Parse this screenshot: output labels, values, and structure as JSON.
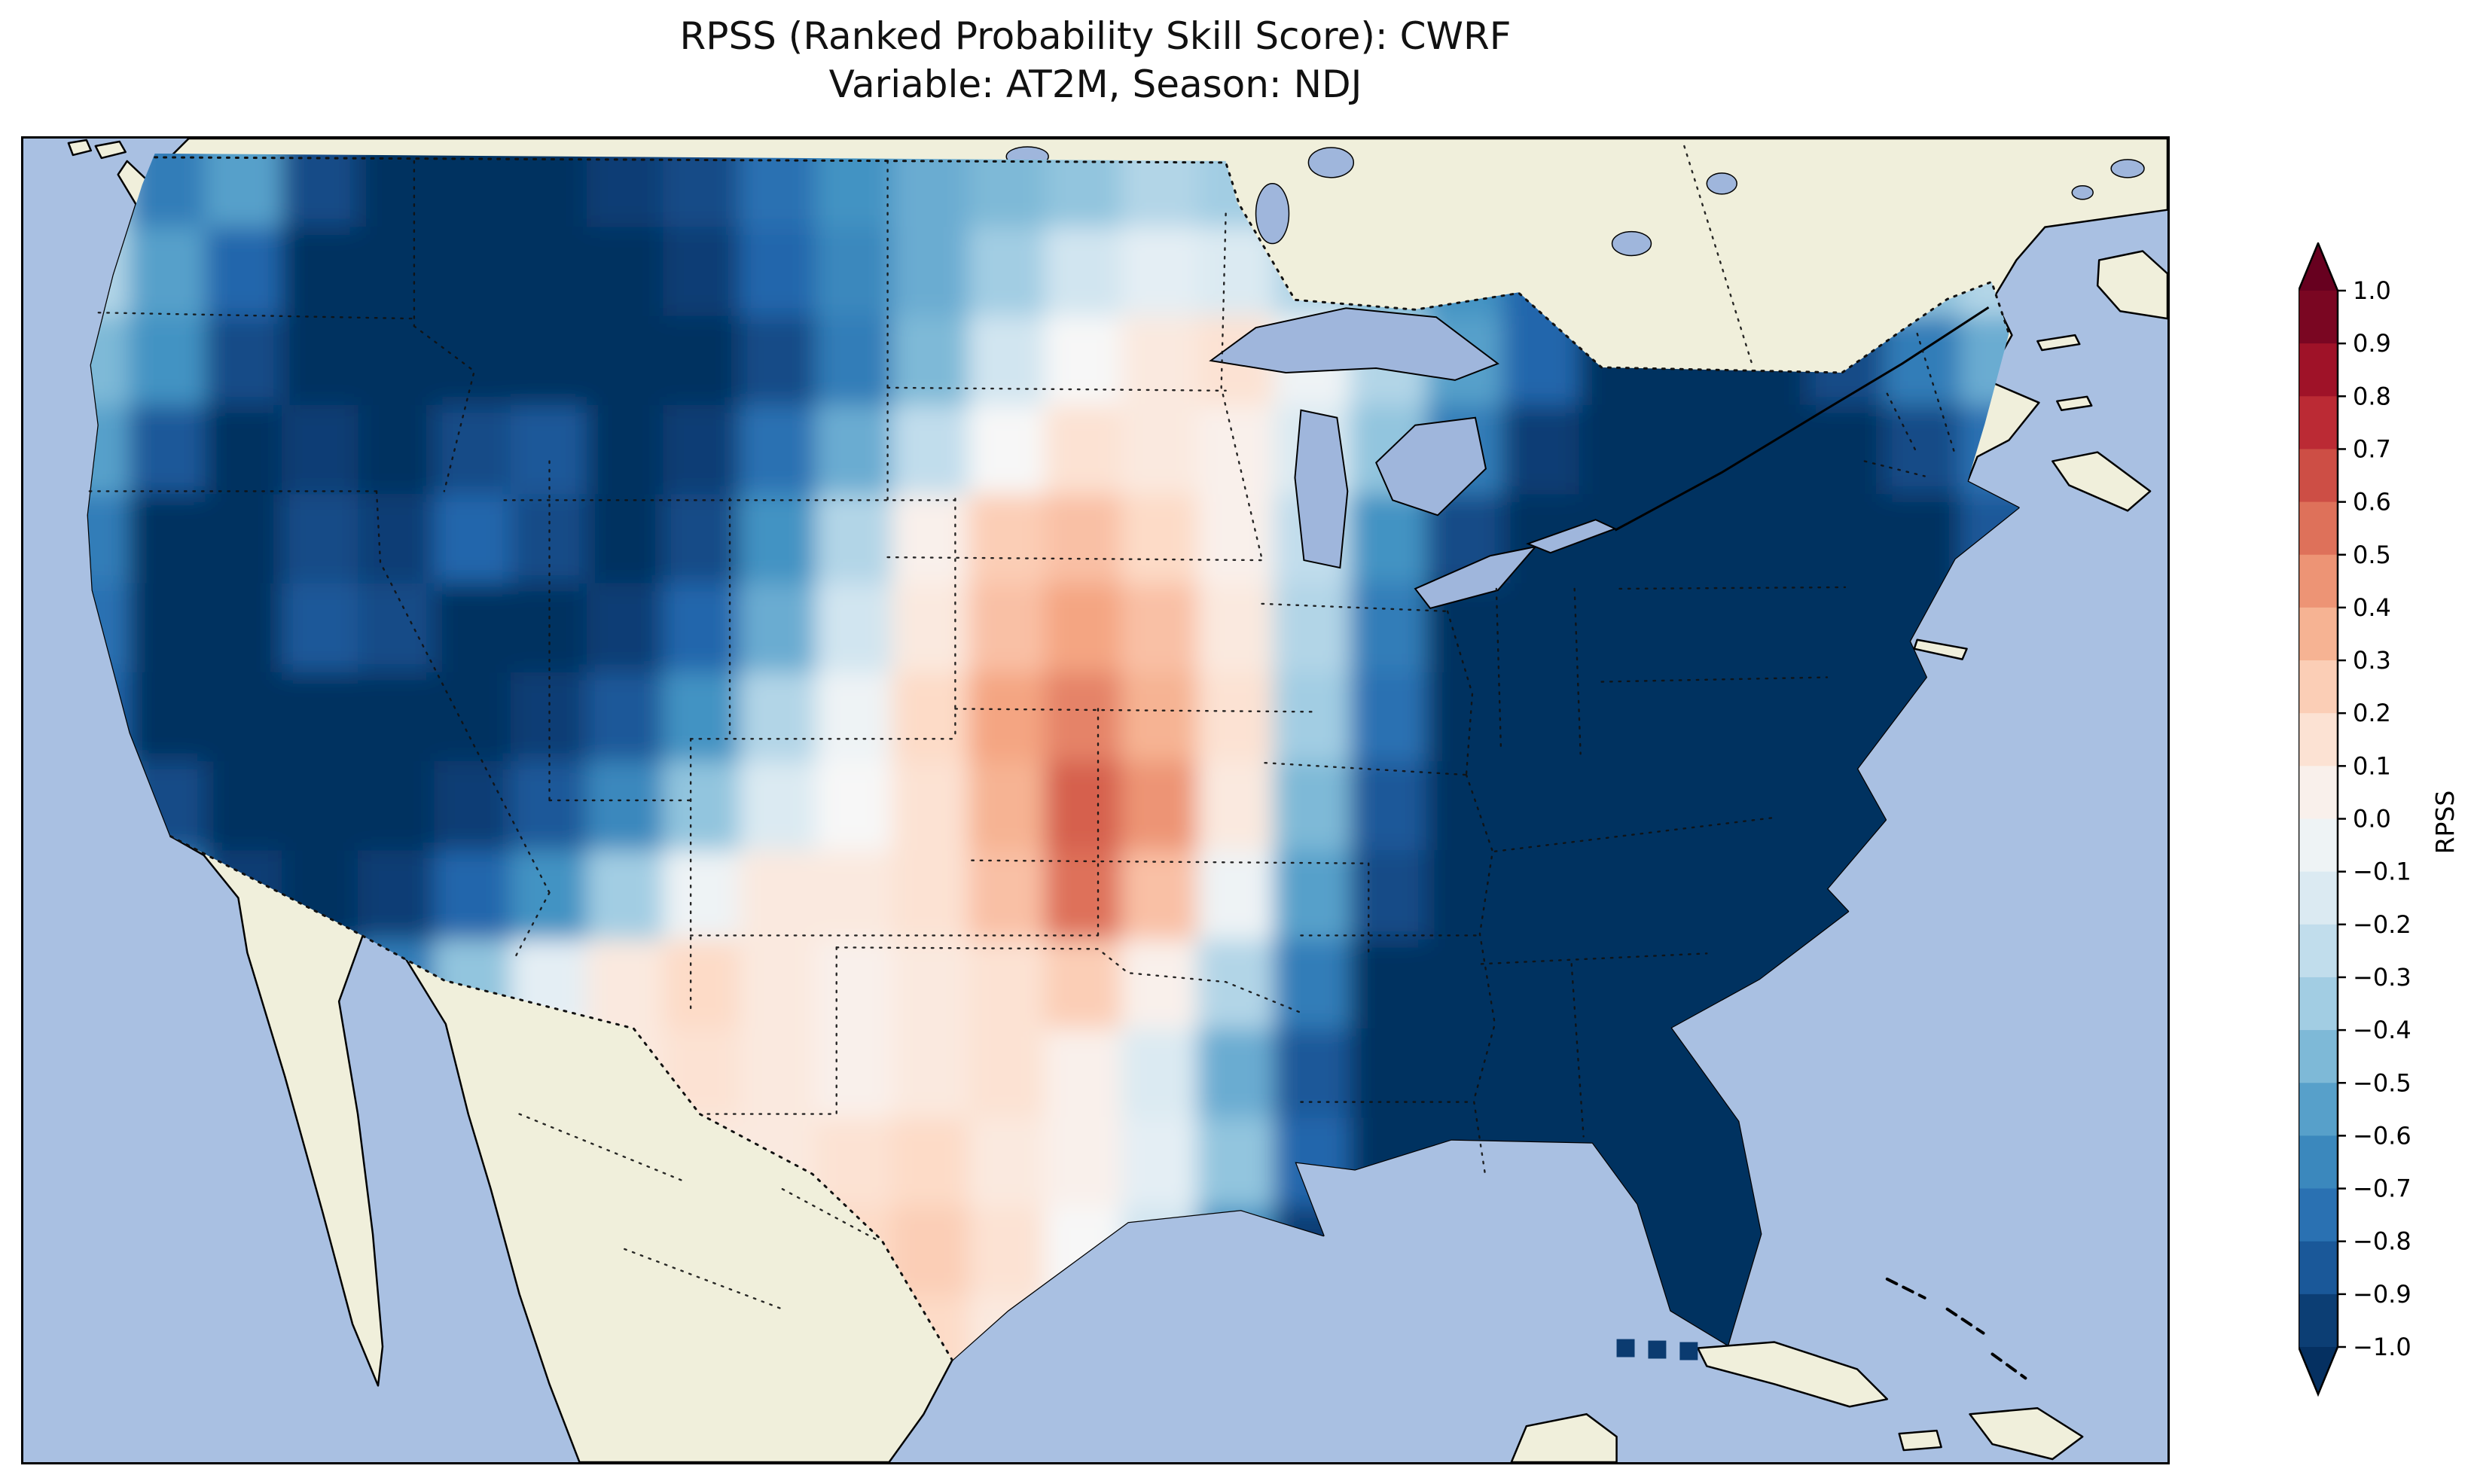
{
  "figure": {
    "title_line1": "RPSS (Ranked Probability Skill Score): CWRF",
    "title_line2": "Variable: AT2M, Season: NDJ"
  },
  "colorbar": {
    "label": "RPSS",
    "vmin": -1.0,
    "vmax": 1.0,
    "tick_step": 0.1,
    "extend": "both",
    "colormap": "RdBu_r",
    "tick_labels": [
      "1.0",
      "0.9",
      "0.8",
      "0.7",
      "0.6",
      "0.5",
      "0.4",
      "0.3",
      "0.2",
      "0.1",
      "0.0",
      "−0.1",
      "−0.2",
      "−0.3",
      "−0.4",
      "−0.5",
      "−0.6",
      "−0.7",
      "−0.8",
      "−0.9",
      "−1.0"
    ],
    "stops_low_to_high": [
      "#053061",
      "#2166ac",
      "#4393c3",
      "#92c5de",
      "#d1e5f0",
      "#f7f7f7",
      "#fddbc7",
      "#f4a582",
      "#d6604d",
      "#b2182b",
      "#67001f"
    ]
  },
  "map": {
    "ocean_color": "#a9c0e2",
    "land_color": "#f0efdb",
    "lake_color": "#9fb6dc",
    "coast_color": "#000000"
  },
  "chart_data": {
    "type": "heatmap",
    "title": "RPSS (Ranked Probability Skill Score): CWRF",
    "subtitle": "Variable: AT2M, Season: NDJ",
    "model": "CWRF",
    "variable": "AT2M",
    "season": "NDJ",
    "colorbar_label": "RPSS",
    "value_range": [
      -1.0,
      1.0
    ],
    "colormap": "RdBu_r",
    "region": "Contiguous United States",
    "grid": {
      "cols": 26,
      "rows": 14,
      "orientation": "row 0 = north (Canada border), col 0 = west (Pacific coast); values estimated from map colors",
      "values": [
        [
          -0.35,
          -0.7,
          -0.55,
          -0.9,
          -1,
          -1,
          -1,
          -0.95,
          -0.9,
          -0.75,
          -0.6,
          -0.5,
          -0.45,
          -0.4,
          -0.3,
          -0.35,
          -0.5,
          -0.6,
          -0.7,
          -0.8,
          -0.85,
          -0.7,
          -0.5,
          -0.35,
          -0.25,
          -0.15
        ],
        [
          -0.3,
          -0.55,
          -0.8,
          -1,
          -1,
          -1,
          -1,
          -1,
          -0.95,
          -0.8,
          -0.65,
          -0.5,
          -0.35,
          -0.2,
          -0.1,
          -0.15,
          -0.3,
          -0.45,
          -0.6,
          -0.8,
          -0.95,
          -1,
          -0.8,
          -0.6,
          -0.4,
          -0.3
        ],
        [
          -0.45,
          -0.6,
          -0.9,
          -1,
          -1,
          -1,
          -1,
          -1,
          -1,
          -0.9,
          -0.7,
          -0.45,
          -0.2,
          0,
          0.1,
          0.15,
          -0.05,
          -0.3,
          -0.55,
          -0.8,
          -1,
          -1,
          -1,
          -0.9,
          -0.7,
          -0.5
        ],
        [
          -0.55,
          -0.85,
          -1,
          -0.95,
          -1,
          -0.9,
          -0.85,
          -1,
          -0.95,
          -0.75,
          -0.5,
          -0.25,
          0,
          0.15,
          0.1,
          0.05,
          -0.15,
          -0.4,
          -0.7,
          -0.95,
          -1,
          -1,
          -1,
          -1,
          -0.9,
          -0.75
        ],
        [
          -0.7,
          -1,
          -1,
          -0.9,
          -0.95,
          -0.8,
          -0.9,
          -1,
          -0.9,
          -0.6,
          -0.3,
          0.05,
          0.25,
          0.3,
          0.2,
          0.05,
          -0.25,
          -0.6,
          -0.9,
          -1,
          -1,
          -1,
          -1,
          -1,
          -1,
          -0.85
        ],
        [
          -0.75,
          -1,
          -1,
          -0.85,
          -0.9,
          -1,
          -1,
          -0.95,
          -0.8,
          -0.5,
          -0.2,
          0.1,
          0.3,
          0.4,
          0.3,
          0.1,
          -0.3,
          -0.7,
          -1,
          -1,
          -1,
          -1,
          -1,
          -1,
          -1,
          -0.9
        ],
        [
          -0.8,
          -1,
          -1,
          -1,
          -1,
          -1,
          -0.95,
          -0.85,
          -0.6,
          -0.3,
          -0.05,
          0.2,
          0.4,
          0.5,
          0.35,
          0.15,
          -0.35,
          -0.75,
          -1,
          -1,
          -1,
          -1,
          -1,
          -1,
          -1,
          -1
        ],
        [
          -0.6,
          -0.9,
          -1,
          -1,
          -1,
          -0.95,
          -0.85,
          -0.65,
          -0.4,
          -0.15,
          0,
          0.15,
          0.35,
          0.6,
          0.45,
          0.1,
          -0.45,
          -0.85,
          -1,
          -1,
          -1,
          -1,
          -1,
          -1,
          -1,
          -1
        ],
        [
          -0.4,
          -0.7,
          -0.95,
          -1,
          -0.95,
          -0.8,
          -0.6,
          -0.35,
          -0.05,
          0.1,
          0.1,
          0.15,
          0.3,
          0.55,
          0.3,
          -0.05,
          -0.55,
          -0.9,
          -1,
          -1,
          -1,
          -1,
          -1,
          -1,
          -1,
          -1
        ],
        [
          -0.3,
          -0.5,
          -0.8,
          -0.9,
          -0.7,
          -0.4,
          -0.1,
          0.1,
          0.2,
          0.1,
          0.05,
          0.1,
          0.15,
          0.25,
          0.05,
          -0.3,
          -0.7,
          -1,
          -1,
          -1,
          -1,
          -1,
          -1,
          -1,
          -1,
          -1
        ],
        [
          -0.2,
          -0.3,
          -0.5,
          -0.6,
          -0.4,
          -0.2,
          0,
          0.1,
          0.15,
          0.1,
          0.05,
          0.1,
          0.15,
          0.05,
          -0.15,
          -0.5,
          -0.85,
          -1,
          -1,
          -1,
          -1,
          -1,
          -1,
          -1,
          -1,
          -1
        ],
        [
          -0.15,
          -0.2,
          -0.3,
          -0.3,
          -0.2,
          -0.1,
          0,
          0.05,
          0.1,
          0.1,
          0.15,
          0.2,
          0.1,
          0.05,
          -0.1,
          -0.4,
          -0.8,
          -1,
          -1,
          -1,
          -1,
          -1,
          -1,
          -1,
          -1,
          -1
        ],
        [
          -0.1,
          -0.1,
          -0.15,
          -0.2,
          -0.15,
          -0.1,
          -0.05,
          0,
          0.05,
          0.1,
          0.2,
          0.25,
          0.15,
          0,
          -0.2,
          -0.6,
          -0.95,
          -1,
          -1,
          -1,
          -1,
          -1,
          -1,
          -1,
          -1,
          -1
        ],
        [
          0,
          0,
          0.05,
          0.05,
          0,
          0,
          0.05,
          0.05,
          0.1,
          0.1,
          0.15,
          0.2,
          0.1,
          -0.1,
          -0.4,
          -0.7,
          -1,
          -1,
          -1,
          -1,
          -1,
          -1,
          -1,
          -1,
          -1,
          -1
        ]
      ]
    }
  }
}
